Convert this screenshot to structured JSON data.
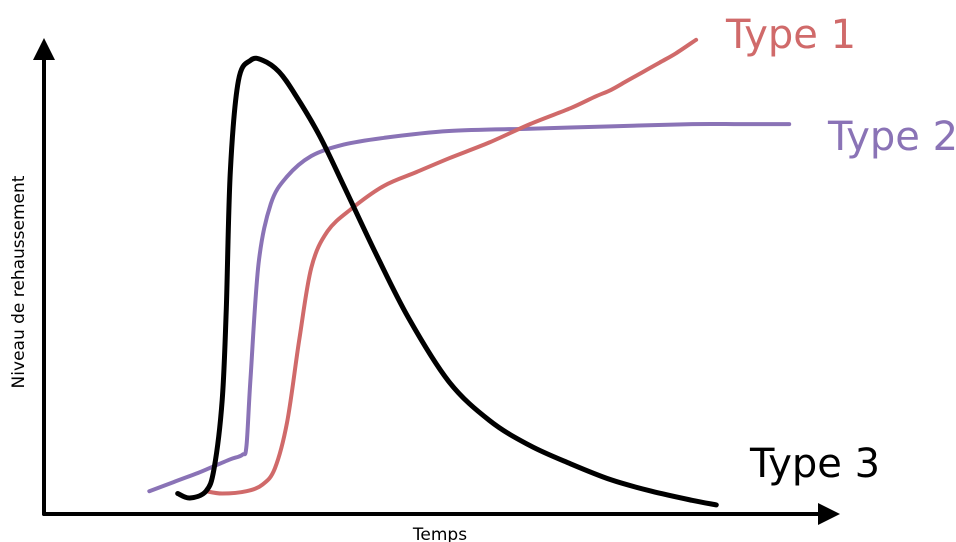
{
  "chart_data": {
    "type": "line",
    "title": "",
    "xlabel": "Temps",
    "ylabel": "Niveau de rehaussement",
    "xlim": [
      0,
      100
    ],
    "ylim": [
      0,
      100
    ],
    "grid": false,
    "legend": "inline labels at right end of each curve",
    "series": [
      {
        "name": "Type 1",
        "color": "#d06a6a",
        "x": [
          20,
          22,
          25,
          27,
          28.5,
          30,
          31.5,
          33,
          35,
          38,
          42,
          46,
          50,
          55,
          60,
          65,
          68,
          70,
          72,
          74,
          76,
          78,
          80.5
        ],
        "y": [
          5,
          4.5,
          5,
          6.5,
          10,
          20,
          38,
          54,
          62,
          67,
          72,
          75,
          78,
          81.5,
          85.5,
          89,
          91.5,
          93,
          95,
          97,
          99,
          101,
          104
        ]
      },
      {
        "name": "Type 2",
        "color": "#8a73b6",
        "x": [
          13,
          16,
          19,
          21,
          23,
          24.5,
          25,
          25.5,
          26.5,
          28,
          30,
          33,
          37,
          42,
          50,
          60,
          70,
          80,
          86,
          92
        ],
        "y": [
          5,
          7,
          9,
          10.5,
          12,
          13,
          15,
          30,
          55,
          68,
          74,
          78.5,
          81,
          82.5,
          84,
          84.5,
          85,
          85.5,
          85.5,
          85.5
        ]
      },
      {
        "name": "Type 3",
        "color": "#000000",
        "x": [
          16.5,
          18,
          20,
          21,
          22,
          22.5,
          23,
          24,
          25.5,
          27,
          29,
          31,
          34,
          37,
          41,
          45,
          50,
          55,
          60,
          65,
          70,
          75,
          80,
          83
        ],
        "y": [
          4.5,
          3.5,
          5,
          10,
          25,
          45,
          75,
          95,
          99.5,
          99.5,
          97,
          92,
          83,
          72,
          57,
          43,
          29,
          20.5,
          15,
          11,
          7.5,
          5,
          3,
          2
        ]
      }
    ]
  }
}
